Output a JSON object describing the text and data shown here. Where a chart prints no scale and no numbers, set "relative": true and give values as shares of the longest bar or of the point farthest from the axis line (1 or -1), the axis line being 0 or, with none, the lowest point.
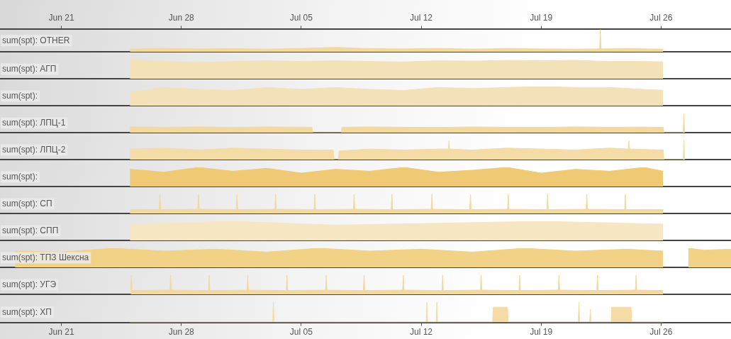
{
  "chart_data": [
    {
      "type": "area",
      "title": "sum(spt): OTHER",
      "relative": true,
      "legend": false,
      "grid": false,
      "tick_labels": false,
      "xlim": [
        "--06-17T10:00",
        "--07-30T02:00"
      ],
      "x2lim": [
        "--06-17T10:00",
        "--07-30T02:00"
      ],
      "x2ticks": [
        {
          "value": "--06-21",
          "label": "Jun 21"
        },
        {
          "value": "--06-28",
          "label": "Jun 28"
        },
        {
          "value": "--07-05",
          "label": "Jul 05"
        },
        {
          "value": "--07-12",
          "label": "Jul 12"
        },
        {
          "value": "--07-19",
          "label": "Jul 19"
        },
        {
          "value": "--07-26",
          "label": "Jul 26"
        }
      ],
      "x": [
        "--06-25",
        "--06-27",
        "--06-29",
        "--07-01",
        "--07-03",
        "--07-05",
        "--07-07",
        "--07-09",
        "--07-11",
        "--07-13",
        "--07-15",
        "--07-17",
        "--07-19",
        "--07-21",
        "--07-22T10:00",
        "--07-22T11:00",
        "--07-22T12:00",
        "--07-24",
        "--07-26T03:00"
      ],
      "series": [
        {
          "color": "#f3d89f",
          "values": [
            0.12,
            0.15,
            0.13,
            0.14,
            0.12,
            0.15,
            0.2,
            0.14,
            0.13,
            0.15,
            0.12,
            0.14,
            0.13,
            0.12,
            0.13,
            1,
            0.13,
            0.14,
            0.12
          ]
        }
      ]
    },
    {
      "type": "area",
      "title": "sum(spt): АГП",
      "relative": true,
      "legend": false,
      "grid": false,
      "tick_labels": false,
      "xlim": [
        "--06-17T10:00",
        "--07-30T02:00"
      ],
      "x": [
        "--06-25",
        "--06-27",
        "--06-29",
        "--07-01",
        "--07-03",
        "--07-05",
        "--07-07",
        "--07-09",
        "--07-11",
        "--07-13",
        "--07-15",
        "--07-17",
        "--07-19",
        "--07-21",
        "--07-23",
        "--07-25",
        "--07-26T03:00"
      ],
      "series": [
        {
          "color": "#f5e1b8",
          "values": [
            1,
            0.9,
            0.84,
            0.9,
            0.94,
            0.9,
            0.94,
            0.9,
            0.88,
            0.94,
            0.92,
            0.96,
            0.94,
            0.96,
            0.9,
            0.9,
            0.88
          ]
        }
      ]
    },
    {
      "type": "area",
      "title": "sum(spt):",
      "relative": true,
      "legend": false,
      "grid": false,
      "tick_labels": false,
      "xlim": [
        "--06-17T10:00",
        "--07-30T02:00"
      ],
      "x": [
        "--06-25",
        "--06-27",
        "--06-29",
        "--07-01",
        "--07-03",
        "--07-05",
        "--07-07",
        "--07-09",
        "--07-11",
        "--07-13",
        "--07-15",
        "--07-17",
        "--07-19",
        "--07-21",
        "--07-23",
        "--07-25",
        "--07-26T03:00"
      ],
      "series": [
        {
          "color": "#f5e1b8",
          "values": [
            0.7,
            0.95,
            0.85,
            0.8,
            0.95,
            0.85,
            0.95,
            0.85,
            0.8,
            0.95,
            0.9,
            0.95,
            1,
            0.95,
            0.95,
            0.85,
            0.8
          ]
        }
      ]
    },
    {
      "type": "area",
      "title": "sum(spt): ЛПЦ-1",
      "relative": true,
      "legend": false,
      "grid": false,
      "tick_labels": false,
      "xlim": [
        "--06-17T10:00",
        "--07-30T02:00"
      ],
      "x": [
        "--06-25",
        "--06-27",
        "--06-29",
        "--07-01",
        "--07-03",
        "--07-05T15:00",
        "--07-05T16:00",
        "--07-07T08:00",
        "--07-07T09:00",
        "--07-09",
        "--07-11",
        "--07-13",
        "--07-15",
        "--07-17",
        "--07-19",
        "--07-21",
        "--07-23",
        "--07-25",
        "--07-26T03:00",
        "--07-26T04:00",
        "--07-27T07:00",
        "--07-27T08:00",
        "--07-27T09:00"
      ],
      "series": [
        {
          "color": "#f3d89f",
          "values": [
            0.3,
            0.28,
            0.3,
            0.27,
            0.3,
            0.28,
            0,
            0,
            0.28,
            0.3,
            0.28,
            0.27,
            0.3,
            0.28,
            0.27,
            0.3,
            0.28,
            0.29,
            0.27,
            0,
            0,
            1,
            0
          ]
        }
      ]
    },
    {
      "type": "area",
      "title": "sum(spt): ЛПЦ-2",
      "relative": true,
      "legend": false,
      "grid": false,
      "tick_labels": false,
      "xlim": [
        "--06-17T10:00",
        "--07-30T02:00"
      ],
      "x": [
        "--06-25",
        "--06-27",
        "--06-29",
        "--07-01",
        "--07-03",
        "--07-05",
        "--07-06T21:00",
        "--07-06T22:00",
        "--07-07T04:00",
        "--07-07T05:00",
        "--07-09",
        "--07-11",
        "--07-13",
        "--07-13T14:00",
        "--07-13T15:00",
        "--07-13T16:00",
        "--07-15",
        "--07-17",
        "--07-19",
        "--07-21",
        "--07-23",
        "--07-24T02:00",
        "--07-24T03:00",
        "--07-24T04:00",
        "--07-26T03:00",
        "--07-26T04:00",
        "--07-27T07:00",
        "--07-27T08:00",
        "--07-27T09:00"
      ],
      "series": [
        {
          "color": "#f5dca6",
          "values": [
            0.55,
            0.6,
            0.5,
            0.6,
            0.55,
            0.5,
            0.5,
            0,
            0,
            0.45,
            0.55,
            0.5,
            0.55,
            0.55,
            1,
            0.55,
            0.5,
            0.6,
            0.55,
            0.5,
            0.6,
            0.55,
            1,
            0.55,
            0.5,
            0,
            0,
            1,
            0
          ]
        }
      ]
    },
    {
      "type": "area",
      "title": "sum(spt):",
      "relative": true,
      "legend": false,
      "grid": false,
      "tick_labels": false,
      "xlim": [
        "--06-17T10:00",
        "--07-30T02:00"
      ],
      "x": [
        "--06-25",
        "--06-27",
        "--06-29",
        "--07-01",
        "--07-03",
        "--07-05",
        "--07-07",
        "--07-09",
        "--07-11",
        "--07-13",
        "--07-15",
        "--07-17",
        "--07-19",
        "--07-21",
        "--07-23",
        "--07-25",
        "--07-26T03:00"
      ],
      "series": [
        {
          "color": "#f0c974",
          "values": [
            0.9,
            0.75,
            1,
            0.8,
            0.95,
            0.7,
            0.9,
            0.8,
            1,
            0.75,
            0.85,
            1,
            0.7,
            0.9,
            0.8,
            1,
            0.8
          ]
        }
      ]
    },
    {
      "type": "area",
      "title": "sum(spt): СП",
      "relative": true,
      "legend": false,
      "grid": false,
      "tick_labels": false,
      "xlim": [
        "--06-17T10:00",
        "--07-30T02:00"
      ],
      "x": [
        "--06-25",
        "--06-26T17:00",
        "--06-26T18:00",
        "--06-26T19:00",
        "--06-28T23:00",
        "--06-29T00:00",
        "--06-29T01:00",
        "--07-01T05:00",
        "--07-01T06:00",
        "--07-01T07:00",
        "--07-03T11:00",
        "--07-03T12:00",
        "--07-03T13:00",
        "--07-05T18:00",
        "--07-05T19:00",
        "--07-05T20:00",
        "--07-08T01:00",
        "--07-08T02:00",
        "--07-08T03:00",
        "--07-10T06:00",
        "--07-10T07:00",
        "--07-10T08:00",
        "--07-12T14:00",
        "--07-12T15:00",
        "--07-12T16:00",
        "--07-14T20:00",
        "--07-14T21:00",
        "--07-14T22:00",
        "--07-17T01:00",
        "--07-17T02:00",
        "--07-17T03:00",
        "--07-19T08:00",
        "--07-19T09:00",
        "--07-19T10:00",
        "--07-21T15:00",
        "--07-21T16:00",
        "--07-21T17:00",
        "--07-23T21:00",
        "--07-23T22:00",
        "--07-23T23:00",
        "--07-26T03:00"
      ],
      "series": [
        {
          "color": "#f3d89f",
          "values": [
            0.2,
            0.2,
            1,
            0.2,
            0.22,
            1,
            0.22,
            0.2,
            1,
            0.2,
            0.22,
            1,
            0.22,
            0.2,
            1,
            0.2,
            0.22,
            1,
            0.22,
            0.2,
            1,
            0.2,
            0.22,
            1,
            0.22,
            0.2,
            1,
            0.2,
            0.22,
            1,
            0.22,
            0.2,
            1,
            0.2,
            0.22,
            1,
            0.22,
            0.2,
            1,
            0.2,
            0.2
          ]
        }
      ]
    },
    {
      "type": "area",
      "title": "sum(spt): СПП",
      "relative": true,
      "legend": false,
      "grid": false,
      "tick_labels": false,
      "xlim": [
        "--06-17T10:00",
        "--07-30T02:00"
      ],
      "x": [
        "--06-25",
        "--07-01",
        "--07-07",
        "--07-13",
        "--07-19",
        "--07-26T03:00"
      ],
      "series": [
        {
          "color": "#f7e6c3",
          "values": [
            0.85,
            1,
            0.8,
            0.9,
            1,
            0.85
          ]
        }
      ]
    },
    {
      "type": "area",
      "title": "sum(spt): ТПЗ Шексна",
      "relative": true,
      "legend": false,
      "grid": false,
      "tick_labels": false,
      "xlim": [
        "--06-17T10:00",
        "--07-30T02:00"
      ],
      "x": [
        "--06-18T07:00",
        "--06-21",
        "--06-24",
        "--06-27",
        "--06-30",
        "--07-03",
        "--07-06",
        "--07-09",
        "--07-12",
        "--07-15",
        "--07-18",
        "--07-21",
        "--07-24",
        "--07-26T03:00"
      ],
      "series": [
        {
          "color": "#f2d287",
          "values": [
            0.85,
            0.8,
            1,
            0.85,
            0.95,
            0.8,
            1,
            0.85,
            0.95,
            0.8,
            1,
            0.85,
            0.95,
            0.85
          ]
        },
        {
          "color": "#f2d287",
          "x": [
            "--07-27T14:00",
            "--07-28T12:00",
            "--07-30T02:00"
          ],
          "values": [
            1,
            0.9,
            0.95
          ]
        }
      ]
    },
    {
      "type": "area",
      "title": "sum(spt): УГЭ",
      "relative": true,
      "legend": false,
      "grid": false,
      "tick_labels": false,
      "xlim": [
        "--06-17T10:00",
        "--07-30T02:00"
      ],
      "x": [
        "--06-25T01:00",
        "--06-25T02:00",
        "--06-25T03:00",
        "--06-27T08:00",
        "--06-27T09:00",
        "--06-27T10:00",
        "--06-29T14:00",
        "--06-29T15:00",
        "--06-29T16:00",
        "--07-01T20:00",
        "--07-01T21:00",
        "--07-01T22:00",
        "--07-04T03:00",
        "--07-04T04:00",
        "--07-04T05:00",
        "--07-06T10:00",
        "--07-06T11:00",
        "--07-06T12:00",
        "--07-08T15:00",
        "--07-08T16:00",
        "--07-08T17:00",
        "--07-10T22:00",
        "--07-10T23:00",
        "--07-11T00:00",
        "--07-13T05:00",
        "--07-13T06:00",
        "--07-13T07:00",
        "--07-15T11:00",
        "--07-15T12:00",
        "--07-15T13:00",
        "--07-17T17:00",
        "--07-17T18:00",
        "--07-17T19:00",
        "--07-20T00:00",
        "--07-20T01:00",
        "--07-20T02:00",
        "--07-22T06:00",
        "--07-22T07:00",
        "--07-22T08:00",
        "--07-24T12:00",
        "--07-24T13:00",
        "--07-24T14:00",
        "--07-26T03:00"
      ],
      "series": [
        {
          "color": "#f3d89f",
          "values": [
            0.2,
            1,
            0.2,
            0.22,
            1,
            0.22,
            0.2,
            1,
            0.2,
            0.22,
            1,
            0.22,
            0.2,
            1,
            0.2,
            0.22,
            1,
            0.22,
            0.2,
            1,
            0.2,
            0.22,
            1,
            0.22,
            0.2,
            1,
            0.2,
            0.22,
            1,
            0.22,
            0.2,
            1,
            0.2,
            0.22,
            1,
            0.22,
            0.2,
            1,
            0.2,
            0.22,
            1,
            0.22,
            0.2
          ]
        }
      ]
    },
    {
      "type": "area",
      "title": "sum(spt): ХП",
      "relative": true,
      "legend": false,
      "grid": false,
      "tick_labels": "x",
      "xlim": [
        "--06-17T10:00",
        "--07-30T02:00"
      ],
      "xticks": [
        {
          "value": "--06-21",
          "label": "Jun 21"
        },
        {
          "value": "--06-28",
          "label": "Jun 28"
        },
        {
          "value": "--07-05",
          "label": "Jul 05"
        },
        {
          "value": "--07-12",
          "label": "Jul 12"
        },
        {
          "value": "--07-19",
          "label": "Jul 19"
        },
        {
          "value": "--07-26",
          "label": "Jul 26"
        }
      ],
      "x": [
        "--06-25",
        "--07-03T08:00",
        "--07-03T09:00",
        "--07-03T10:00",
        "--07-12T07:00",
        "--07-12T08:00",
        "--07-12T09:00",
        "--07-12T21:00",
        "--07-12T22:00",
        "--07-12T23:00",
        "--07-16T04:00",
        "--07-16T05:00",
        "--07-17T01:00",
        "--07-17T02:00",
        "--07-21T04:00",
        "--07-21T05:00",
        "--07-21T06:00",
        "--07-21T20:00",
        "--07-21T21:00",
        "--07-21T22:00",
        "--07-23T02:00",
        "--07-23T03:00",
        "--07-24T06:00",
        "--07-24T07:00",
        "--07-26T03:00"
      ],
      "series": [
        {
          "color": "#f5dca6",
          "values": [
            0.03,
            0.03,
            1,
            0.03,
            0.03,
            1,
            0.03,
            0.03,
            1,
            0.03,
            0.03,
            0.75,
            0.75,
            0.03,
            0.03,
            1,
            0.03,
            0.03,
            0.65,
            0.03,
            0.03,
            0.75,
            0.75,
            0.03,
            0.03
          ]
        }
      ]
    }
  ]
}
